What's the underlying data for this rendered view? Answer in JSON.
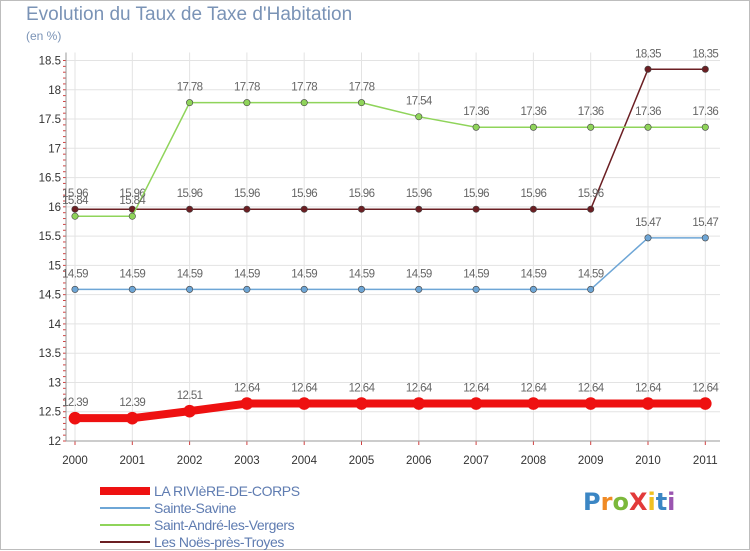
{
  "title": "Evolution du Taux de Taxe d'Habitation",
  "subtitle": "(en %)",
  "logo": {
    "text": "ProXiti",
    "letters": [
      "P",
      "r",
      "o",
      "X",
      "i",
      "t",
      "i"
    ],
    "colors": [
      "#3b86c4",
      "#f08a24",
      "#7cb83a",
      "#e23a3a",
      "#f0c020",
      "#3b86c4",
      "#9a55b0"
    ]
  },
  "chart_data": {
    "type": "line",
    "x": [
      "2000",
      "2001",
      "2002",
      "2003",
      "2004",
      "2005",
      "2006",
      "2007",
      "2008",
      "2009",
      "2010",
      "2011"
    ],
    "y_ticks": [
      "12",
      "12.5",
      "13",
      "13.5",
      "14",
      "14.5",
      "15",
      "15.5",
      "16",
      "16.5",
      "17",
      "17.5",
      "18",
      "18.5"
    ],
    "ylim": [
      12,
      18.5
    ],
    "grid": true,
    "legend_position": "bottom-left",
    "series": [
      {
        "name": "Les Noës-près-Troyes",
        "color": "#6b1f23",
        "width": 1.5,
        "values": [
          15.96,
          15.96,
          15.96,
          15.96,
          15.96,
          15.96,
          15.96,
          15.96,
          15.96,
          15.96,
          18.35,
          18.35
        ],
        "labels": [
          "15.96",
          "15.96",
          "15.96",
          "15.96",
          "15.96",
          "15.96",
          "15.96",
          "15.96",
          "15.96",
          "15.96",
          "18.35",
          "18.35"
        ]
      },
      {
        "name": "Saint-André-les-Vergers",
        "color": "#8fd45a",
        "width": 1.5,
        "values": [
          15.84,
          15.84,
          17.78,
          17.78,
          17.78,
          17.78,
          17.54,
          17.36,
          17.36,
          17.36,
          17.36,
          17.36
        ],
        "labels": [
          "15.84",
          "15.84",
          "17.78",
          "17.78",
          "17.78",
          "17.78",
          "17.54",
          "17.36",
          "17.36",
          "17.36",
          "17.36",
          "17.36"
        ]
      },
      {
        "name": "Sainte-Savine",
        "color": "#6ea6d6",
        "width": 1.5,
        "values": [
          14.59,
          14.59,
          14.59,
          14.59,
          14.59,
          14.59,
          14.59,
          14.59,
          14.59,
          14.59,
          15.47,
          15.47
        ],
        "labels": [
          "14.59",
          "14.59",
          "14.59",
          "14.59",
          "14.59",
          "14.59",
          "14.59",
          "14.59",
          "14.59",
          "14.59",
          "15.47",
          "15.47"
        ]
      },
      {
        "name": "LA RIVIèRE-DE-CORPS",
        "color": "#ee1111",
        "width": 8,
        "values": [
          12.39,
          12.39,
          12.51,
          12.64,
          12.64,
          12.64,
          12.64,
          12.64,
          12.64,
          12.64,
          12.64,
          12.64
        ],
        "labels": [
          "12.39",
          "12.39",
          "12.51",
          "12.64",
          "12.64",
          "12.64",
          "12.64",
          "12.64",
          "12.64",
          "12.64",
          "12.64",
          "12.64"
        ]
      }
    ]
  },
  "legend": [
    {
      "name": "LA RIVIèRE-DE-CORPS",
      "color": "#ee1111",
      "thickness": 8
    },
    {
      "name": "Sainte-Savine",
      "color": "#6ea6d6",
      "thickness": 2
    },
    {
      "name": "Saint-André-les-Vergers",
      "color": "#8fd45a",
      "thickness": 2
    },
    {
      "name": "Les Noës-près-Troyes",
      "color": "#6b1f23",
      "thickness": 2
    }
  ]
}
